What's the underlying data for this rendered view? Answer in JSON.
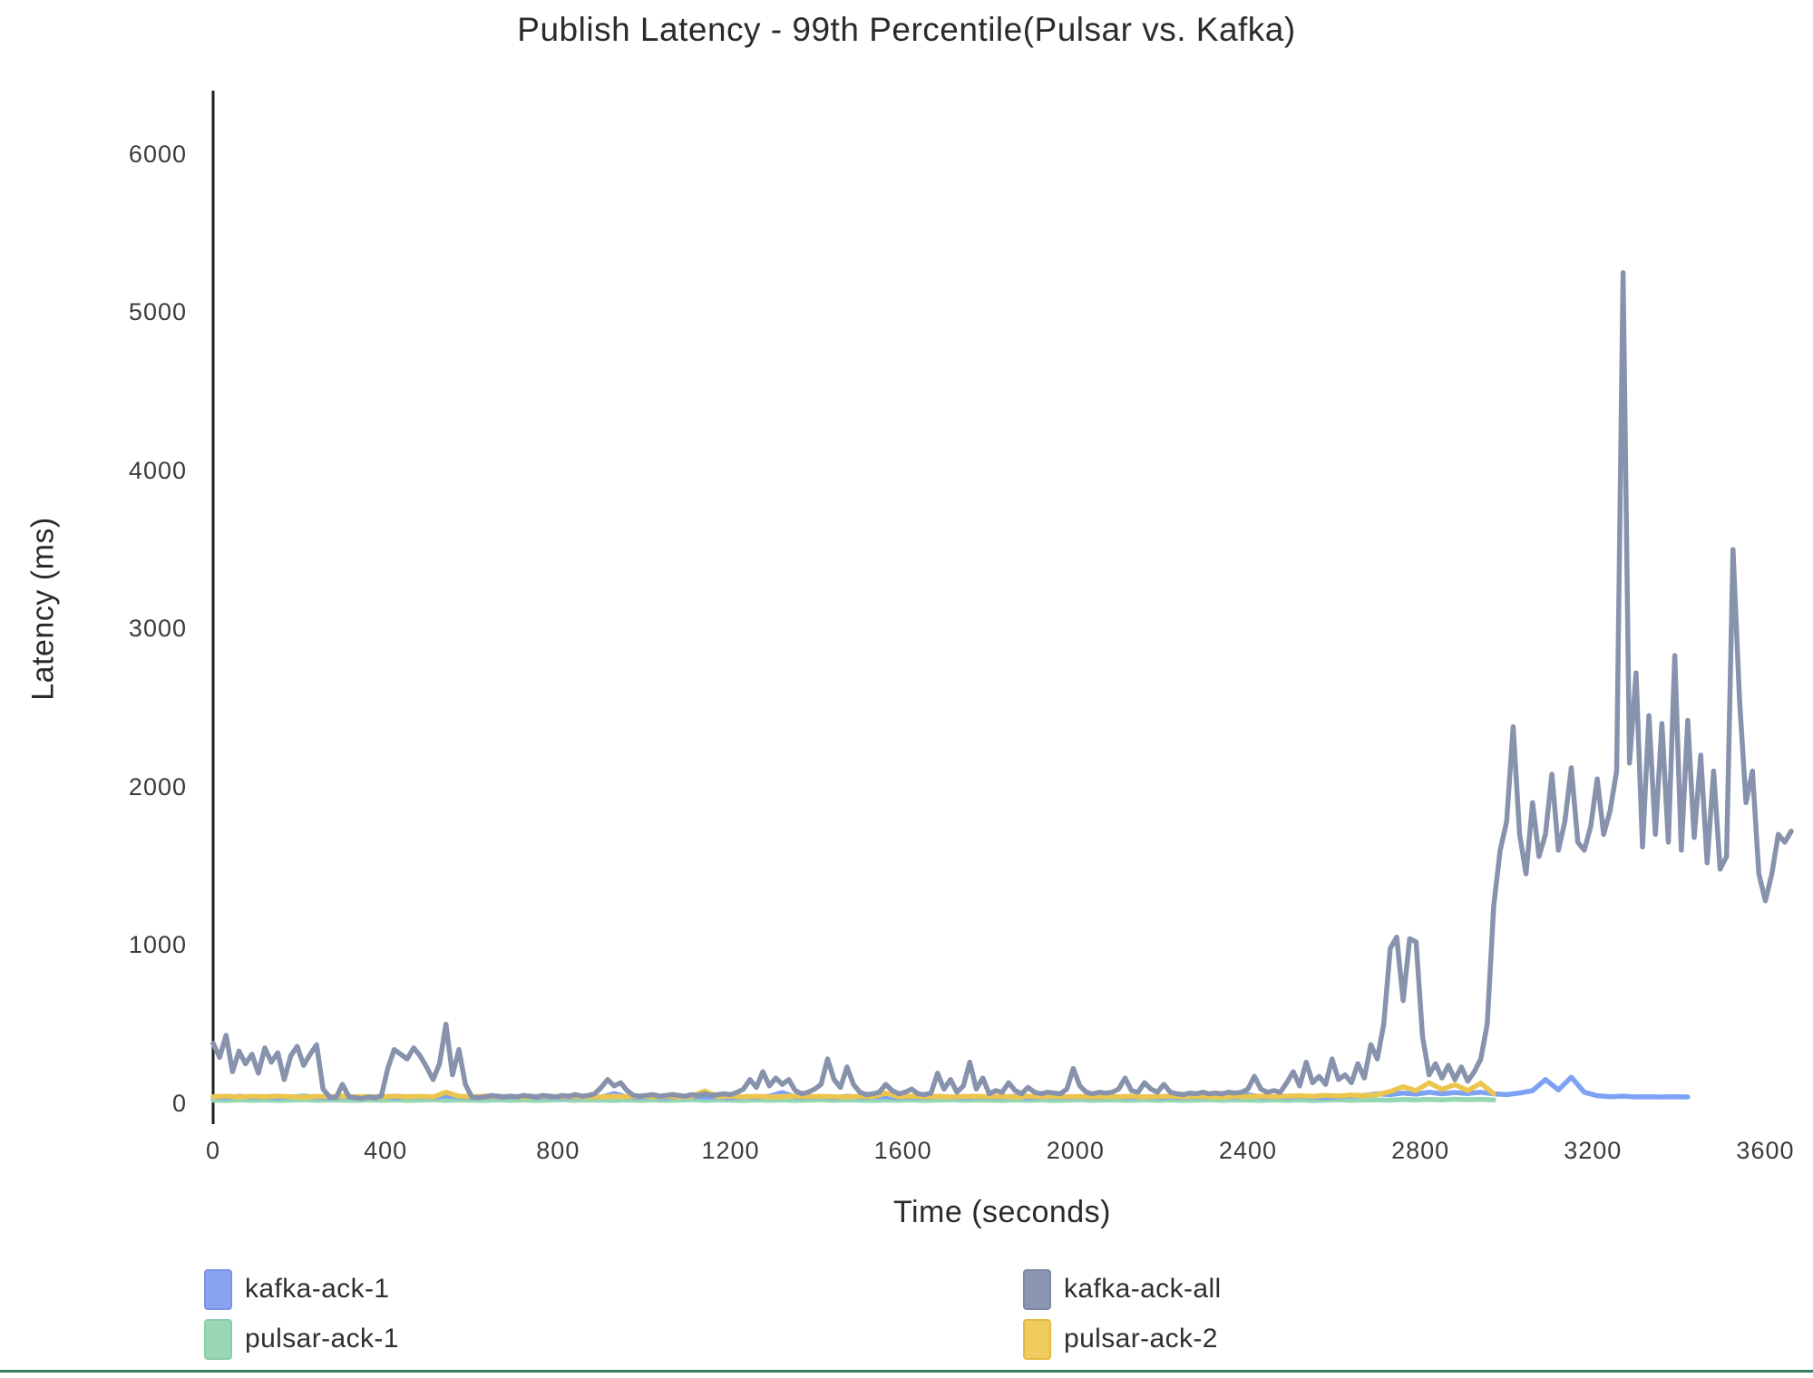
{
  "title": "Publish Latency - 99th Percentile(Pulsar vs. Kafka)",
  "legend": {
    "columns": [
      {
        "items": [
          {
            "label": "kafka-ack-1",
            "color": "#8aa3f0",
            "border": "#7d93e6"
          },
          {
            "label": "pulsar-ack-1",
            "color": "#9ad8b5",
            "border": "#8accaa"
          }
        ]
      },
      {
        "items": [
          {
            "label": "kafka-ack-all",
            "color": "#8b96b0",
            "border": "#7d89a4"
          },
          {
            "label": "pulsar-ack-2",
            "color": "#f0cb5e",
            "border": "#e2ba45"
          }
        ]
      }
    ]
  },
  "chart_data": {
    "type": "line",
    "title": "Publish Latency - 99th Percentile(Pulsar vs. Kafka)",
    "xlabel": "Time (seconds)",
    "ylabel": "Latency (ms)",
    "xlim": [
      0,
      3660
    ],
    "ylim": [
      0,
      6400
    ],
    "x_ticks": [
      0,
      400,
      800,
      1200,
      1600,
      2000,
      2400,
      2800,
      3200,
      3600
    ],
    "y_ticks": [
      0,
      1000,
      2000,
      3000,
      4000,
      5000,
      6000
    ],
    "grid": false,
    "legend_position": "bottom",
    "axis_color": "#1f1f1f",
    "series": [
      {
        "name": "pulsar-ack-1",
        "color": "#95d7b2",
        "x_start": 0,
        "x_step": 30,
        "values": [
          20,
          18,
          22,
          19,
          21,
          18,
          20,
          23,
          19,
          21,
          20,
          18,
          22,
          19,
          21,
          18,
          20,
          23,
          19,
          21,
          20,
          18,
          22,
          19,
          21,
          18,
          20,
          23,
          19,
          21,
          20,
          18,
          22,
          19,
          21,
          18,
          20,
          23,
          19,
          21,
          20,
          18,
          22,
          19,
          21,
          18,
          20,
          23,
          19,
          21,
          20,
          18,
          22,
          19,
          21,
          18,
          20,
          23,
          19,
          21,
          20,
          18,
          22,
          19,
          21,
          18,
          20,
          23,
          19,
          21,
          20,
          18,
          22,
          19,
          21,
          18,
          20,
          23,
          19,
          21,
          20,
          18,
          22,
          19,
          21,
          18,
          20,
          23,
          19,
          21,
          22,
          20,
          24,
          21,
          25,
          22,
          26,
          23,
          25,
          22
        ]
      },
      {
        "name": "kafka-ack-1",
        "color": "#7da2f4",
        "x_start": 0,
        "x_step": 30,
        "values": [
          40,
          36,
          44,
          38,
          42,
          35,
          40,
          45,
          38,
          36,
          43,
          40,
          38,
          44,
          36,
          42,
          40,
          38,
          45,
          40,
          36,
          42,
          38,
          40,
          44,
          38,
          42,
          36,
          40,
          43,
          38,
          62,
          40,
          38,
          42,
          36,
          40,
          44,
          38,
          42,
          36,
          40,
          38,
          44,
          68,
          40,
          38,
          42,
          36,
          44,
          38,
          40,
          42,
          36,
          40,
          38,
          44,
          40,
          36,
          42,
          38,
          40,
          44,
          36,
          40,
          42,
          38,
          40,
          36,
          44,
          40,
          38,
          42,
          36,
          40,
          38,
          42,
          40,
          44,
          38,
          55,
          40,
          42,
          38,
          44,
          40,
          36,
          42,
          46,
          50,
          60,
          55,
          65,
          58,
          70,
          60,
          68,
          62,
          70,
          60,
          55,
          65,
          80,
          150,
          85,
          165,
          70,
          48,
          42,
          45,
          40,
          42,
          40,
          42,
          40
        ]
      },
      {
        "name": "pulsar-ack-2",
        "color": "#ebc54e",
        "x_start": 0,
        "x_step": 30,
        "values": [
          42,
          45,
          40,
          44,
          41,
          46,
          42,
          39,
          44,
          42,
          45,
          41,
          43,
          40,
          46,
          42,
          44,
          40,
          70,
          44,
          42,
          45,
          41,
          44,
          40,
          43,
          45,
          41,
          44,
          42,
          40,
          44,
          42,
          46,
          41,
          44,
          40,
          45,
          78,
          43,
          45,
          41,
          44,
          40,
          43,
          46,
          41,
          44,
          42,
          40,
          44,
          41,
          65,
          42,
          45,
          41,
          44,
          40,
          43,
          45,
          41,
          44,
          40,
          45,
          42,
          44,
          41,
          43,
          40,
          45,
          42,
          44,
          40,
          43,
          45,
          41,
          44,
          42,
          40,
          44,
          43,
          46,
          42,
          45,
          48,
          44,
          50,
          46,
          52,
          48,
          55,
          75,
          105,
          80,
          130,
          88,
          118,
          80,
          128,
          60
        ]
      },
      {
        "name": "kafka-ack-all",
        "color": "#8792ac",
        "x_start": 0,
        "x_step": 15,
        "values": [
          380,
          290,
          430,
          200,
          330,
          250,
          310,
          190,
          350,
          260,
          320,
          150,
          300,
          360,
          240,
          310,
          370,
          90,
          40,
          35,
          120,
          40,
          35,
          30,
          40,
          35,
          45,
          220,
          340,
          310,
          280,
          350,
          300,
          230,
          150,
          250,
          500,
          180,
          340,
          120,
          40,
          35,
          40,
          50,
          45,
          40,
          45,
          40,
          50,
          45,
          40,
          50,
          45,
          40,
          50,
          45,
          55,
          45,
          50,
          60,
          100,
          150,
          110,
          130,
          80,
          50,
          45,
          50,
          55,
          45,
          50,
          55,
          50,
          45,
          55,
          50,
          60,
          50,
          55,
          60,
          55,
          70,
          90,
          150,
          100,
          200,
          110,
          160,
          120,
          150,
          80,
          60,
          70,
          90,
          120,
          280,
          150,
          100,
          230,
          120,
          70,
          55,
          60,
          70,
          120,
          80,
          60,
          70,
          90,
          60,
          55,
          65,
          190,
          90,
          150,
          70,
          110,
          260,
          90,
          160,
          60,
          80,
          70,
          130,
          80,
          60,
          100,
          70,
          60,
          70,
          65,
          60,
          90,
          220,
          110,
          70,
          60,
          70,
          65,
          70,
          90,
          160,
          80,
          70,
          130,
          90,
          70,
          120,
          70,
          60,
          55,
          65,
          60,
          70,
          60,
          65,
          60,
          70,
          65,
          70,
          90,
          170,
          90,
          70,
          80,
          70,
          130,
          200,
          110,
          260,
          130,
          170,
          120,
          280,
          150,
          180,
          130,
          250,
          160,
          370,
          280,
          500,
          980,
          1050,
          650,
          1040,
          1020,
          420,
          180,
          250,
          160,
          240,
          150,
          230,
          140,
          200,
          280,
          500,
          1250,
          1600,
          1780,
          2380,
          1700,
          1450,
          1900,
          1560,
          1700,
          2080,
          1600,
          1780,
          2120,
          1650,
          1600,
          1750,
          2050,
          1700,
          1850,
          2100,
          5250,
          2150,
          2720,
          1620,
          2450,
          1700,
          2400,
          1650,
          2830,
          1600,
          2420,
          1680,
          2200,
          1520,
          2100,
          1480,
          1560,
          3500,
          2550,
          1900,
          2100,
          1450,
          1280,
          1450,
          1700,
          1650,
          1720
        ]
      }
    ]
  }
}
